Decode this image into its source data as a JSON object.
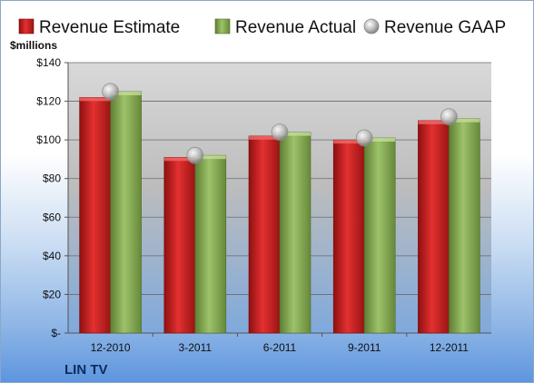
{
  "chart_data": {
    "type": "bar",
    "categories": [
      "12-2010",
      "3-2011",
      "6-2011",
      "9-2011",
      "12-2011"
    ],
    "series": [
      {
        "name": "Revenue Estimate",
        "values": [
          122,
          91,
          102,
          100,
          110
        ],
        "color": "#d42a2a",
        "kind": "bar"
      },
      {
        "name": "Revenue Actual",
        "values": [
          125,
          92,
          104,
          101,
          111
        ],
        "color": "#8db45a",
        "kind": "bar"
      },
      {
        "name": "Revenue GAAP",
        "values": [
          125,
          92,
          104,
          101,
          112
        ],
        "color": "#b8b8b8",
        "kind": "marker"
      }
    ],
    "ylabel": "$millions",
    "ylim": [
      0,
      140
    ],
    "yticks": [
      0,
      20,
      40,
      60,
      80,
      100,
      120,
      140
    ],
    "ytick_labels": [
      "$-",
      "$20",
      "$40",
      "$60",
      "$80",
      "$100",
      "$120",
      "$140"
    ],
    "grid": true,
    "legend": "top"
  },
  "footer": {
    "company": "LIN TV"
  }
}
